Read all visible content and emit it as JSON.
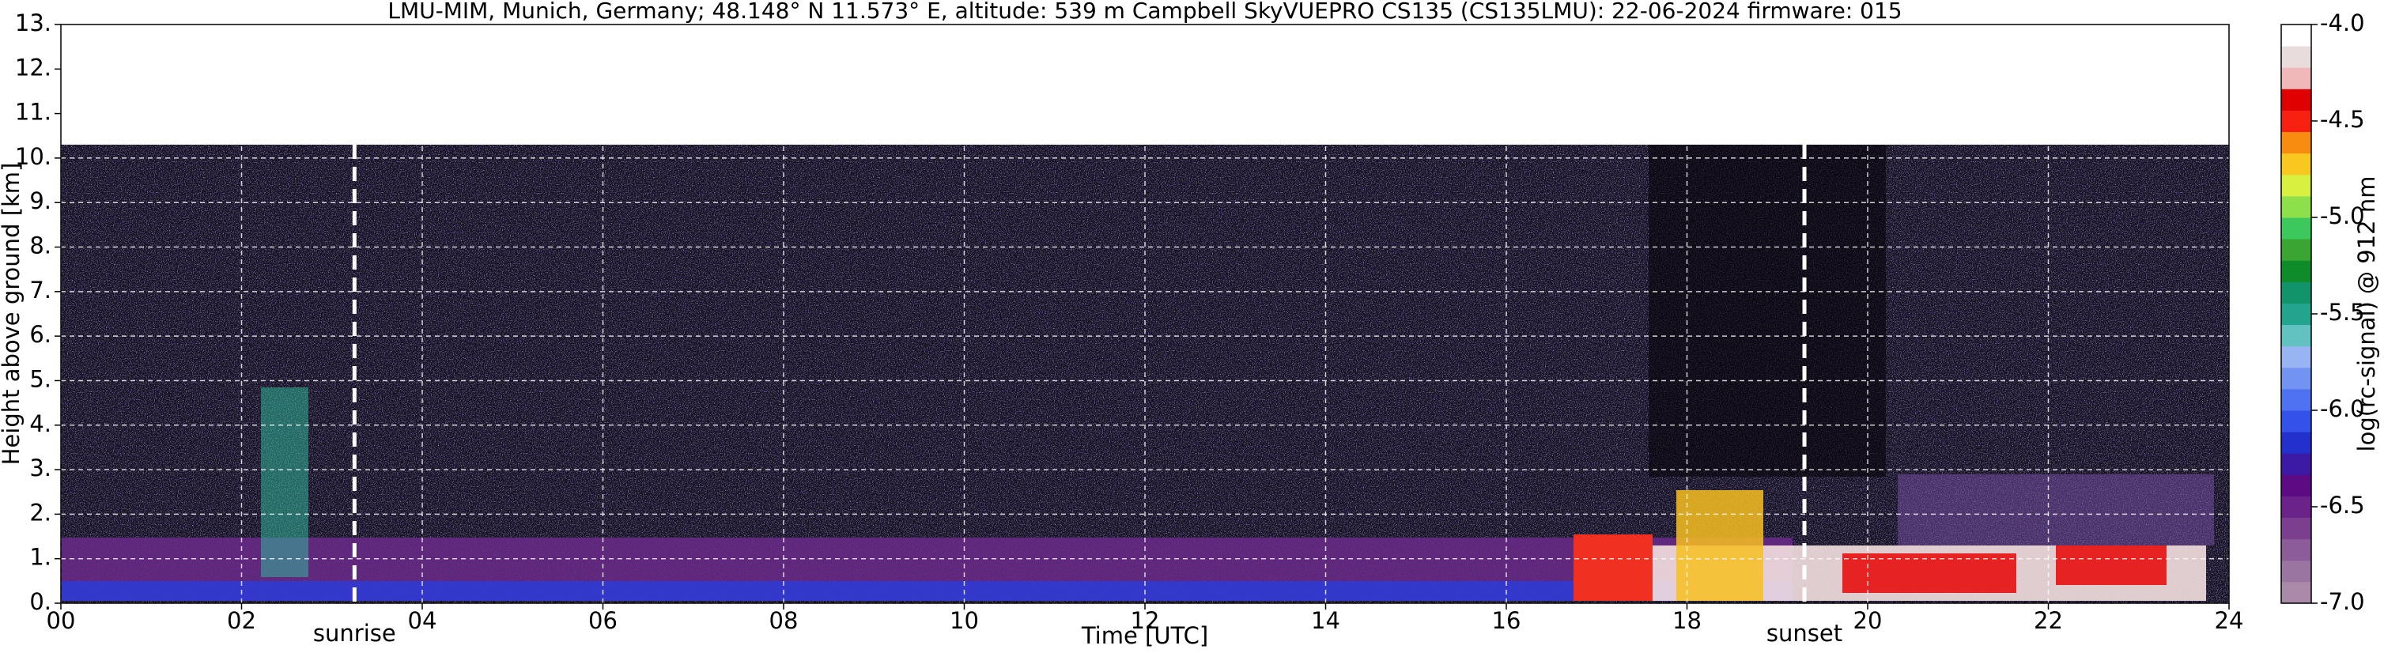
{
  "chart_data": {
    "type": "heatmap",
    "title": "LMU-MIM, Munich, Germany; 48.148° N 11.573° E, altitude: 539 m    Campbell SkyVUEPRO CS135 (CS135LMU): 22-06-2024    firmware: 015",
    "x_label": "Time [UTC]",
    "y_label": "Height above ground [km]",
    "xlim": [
      0,
      24
    ],
    "xticks": [
      {
        "value": 0,
        "label": "00"
      },
      {
        "value": 2,
        "label": "02"
      },
      {
        "value": 4,
        "label": "04"
      },
      {
        "value": 6,
        "label": "06"
      },
      {
        "value": 8,
        "label": "08"
      },
      {
        "value": 10,
        "label": "10"
      },
      {
        "value": 12,
        "label": "12"
      },
      {
        "value": 14,
        "label": "14"
      },
      {
        "value": 16,
        "label": "16"
      },
      {
        "value": 18,
        "label": "18"
      },
      {
        "value": 20,
        "label": "20"
      },
      {
        "value": 22,
        "label": "22"
      },
      {
        "value": 24,
        "label": "24"
      }
    ],
    "ylim": [
      0,
      13
    ],
    "yticks": [
      {
        "value": 0,
        "label": "0."
      },
      {
        "value": 1,
        "label": "1."
      },
      {
        "value": 2,
        "label": "2."
      },
      {
        "value": 3,
        "label": "3."
      },
      {
        "value": 4,
        "label": "4."
      },
      {
        "value": 5,
        "label": "5."
      },
      {
        "value": 6,
        "label": "6."
      },
      {
        "value": 7,
        "label": "7."
      },
      {
        "value": 8,
        "label": "8."
      },
      {
        "value": 9,
        "label": "9."
      },
      {
        "value": 10,
        "label": "10."
      },
      {
        "value": 11,
        "label": "11."
      },
      {
        "value": 12,
        "label": "12."
      },
      {
        "value": 13,
        "label": "13."
      }
    ],
    "grid": true,
    "annotations": [
      {
        "text": "sunrise",
        "x": 3.25
      },
      {
        "text": "sunset",
        "x": 19.3
      }
    ],
    "colorbar": {
      "label": "log(rc-signal) @ 912 nm",
      "clim": [
        -7,
        -4
      ],
      "ticks": [
        {
          "value": -4,
          "label": "-4.0"
        },
        {
          "value": -4.5,
          "label": "-4.5"
        },
        {
          "value": -5,
          "label": "-5.0"
        },
        {
          "value": -5.5,
          "label": "-5.5"
        },
        {
          "value": -6,
          "label": "-6.0"
        },
        {
          "value": -6.5,
          "label": "-6.5"
        },
        {
          "value": -7,
          "label": "-7.0"
        }
      ],
      "colors": [
        "#a98aa9",
        "#9a75a1",
        "#8b5c98",
        "#7c3f8f",
        "#6c2389",
        "#5c0b82",
        "#3d1aa6",
        "#2430cc",
        "#3451ea",
        "#4f72f2",
        "#7393f2",
        "#98b4f2",
        "#62c2c2",
        "#22a48f",
        "#11946a",
        "#0f8c2a",
        "#3aa533",
        "#3cc85c",
        "#8ee04a",
        "#d8f040",
        "#f8c820",
        "#f88c10",
        "#f82010",
        "#e00000",
        "#f0b8b8",
        "#e8dcdc",
        "#ffffff"
      ]
    }
  }
}
